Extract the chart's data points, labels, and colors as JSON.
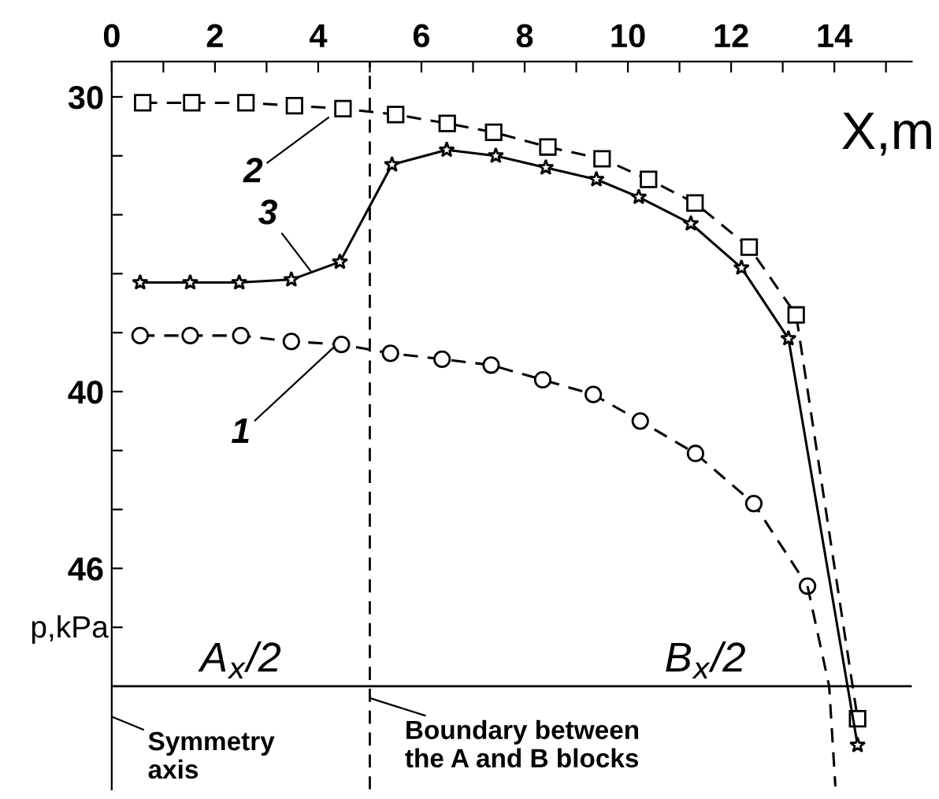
{
  "chart_data": {
    "type": "line",
    "xlabel": "X,m",
    "ylabel": "p,kPa",
    "xlim": [
      0,
      15.5
    ],
    "ylim": [
      53.5,
      28.8
    ],
    "xticks": [
      0,
      {
        "value": 1,
        "label": null
      },
      2,
      {
        "value": 3,
        "label": null
      },
      4,
      {
        "value": 5,
        "label": null
      },
      6,
      {
        "value": 7,
        "label": null
      },
      8,
      {
        "value": 9,
        "label": null
      },
      10,
      {
        "value": 11,
        "label": null
      },
      12,
      {
        "value": 13,
        "label": null
      },
      14,
      {
        "value": 15,
        "label": null
      }
    ],
    "yticks": [
      30,
      {
        "value": 32,
        "label": null
      },
      {
        "value": 34,
        "label": null
      },
      {
        "value": 36,
        "label": null
      },
      {
        "value": 38,
        "label": null
      },
      40,
      {
        "value": 42,
        "label": null
      },
      {
        "value": 44,
        "label": null
      },
      46,
      {
        "value": 48,
        "label": null
      }
    ],
    "grid": false,
    "legend": false,
    "series": [
      {
        "color": "#000000",
        "marker": "circle",
        "line_style": "dashed",
        "x": [
          0.55,
          1.52,
          2.5,
          3.48,
          4.45,
          5.4,
          6.4,
          7.35,
          8.35,
          9.33,
          10.24,
          11.31,
          12.44,
          13.48
        ],
        "values": [
          38.1,
          38.1,
          38.1,
          38.3,
          38.4,
          38.7,
          38.9,
          39.1,
          39.6,
          40.1,
          41.0,
          42.1,
          43.8,
          46.6
        ]
      },
      {
        "color": "#000000",
        "marker": "none",
        "line_style": "dashed",
        "x": [
          13.48,
          13.9,
          14.02
        ],
        "values": [
          46.6,
          50.0,
          53.4
        ]
      },
      {
        "color": "#000000",
        "marker": "square",
        "line_style": "dashed",
        "x": [
          0.6,
          1.55,
          2.6,
          3.54,
          4.48,
          5.5,
          6.5,
          7.4,
          8.45,
          9.5,
          10.4,
          11.3,
          12.35,
          13.26,
          14.45
        ],
        "values": [
          30.2,
          30.2,
          30.2,
          30.3,
          30.4,
          30.6,
          30.9,
          31.2,
          31.7,
          32.1,
          32.8,
          33.6,
          35.1,
          37.4,
          51.1
        ]
      },
      {
        "color": "#000000",
        "marker": "star",
        "line_style": "solid",
        "x": [
          0.55,
          1.52,
          2.47,
          3.48,
          4.42,
          5.43,
          6.49,
          7.44,
          8.41,
          9.39,
          10.21,
          11.22,
          12.2,
          13.11,
          14.45
        ],
        "values": [
          36.3,
          36.3,
          36.3,
          36.2,
          35.6,
          32.3,
          31.8,
          32.0,
          32.4,
          32.8,
          33.4,
          34.3,
          35.8,
          38.2,
          52.0
        ]
      }
    ],
    "ref_lines": [
      {
        "axis": "x",
        "value": 5,
        "line_style": "dashed",
        "color": "#000000"
      },
      {
        "axis": "y",
        "value": 50,
        "line_style": "solid",
        "color": "#000000"
      }
    ],
    "annotations": [
      {
        "text": "1",
        "x": 4.3,
        "y": 38.5
      },
      {
        "text": "2",
        "x": 4.2,
        "y": 30.7
      },
      {
        "text": "3",
        "x": 3.85,
        "y": 35.9
      },
      {
        "text": "A$_{x}$/2",
        "x": 2.5,
        "y": 49.8
      },
      {
        "text": "B$_{x}$/2",
        "x": 11.5,
        "y": 49.8
      },
      "Symmetry\naxis",
      {
        "text": "Boundary between\nthe A and B blocks",
        "x": 5,
        "y": 50.4
      }
    ]
  }
}
